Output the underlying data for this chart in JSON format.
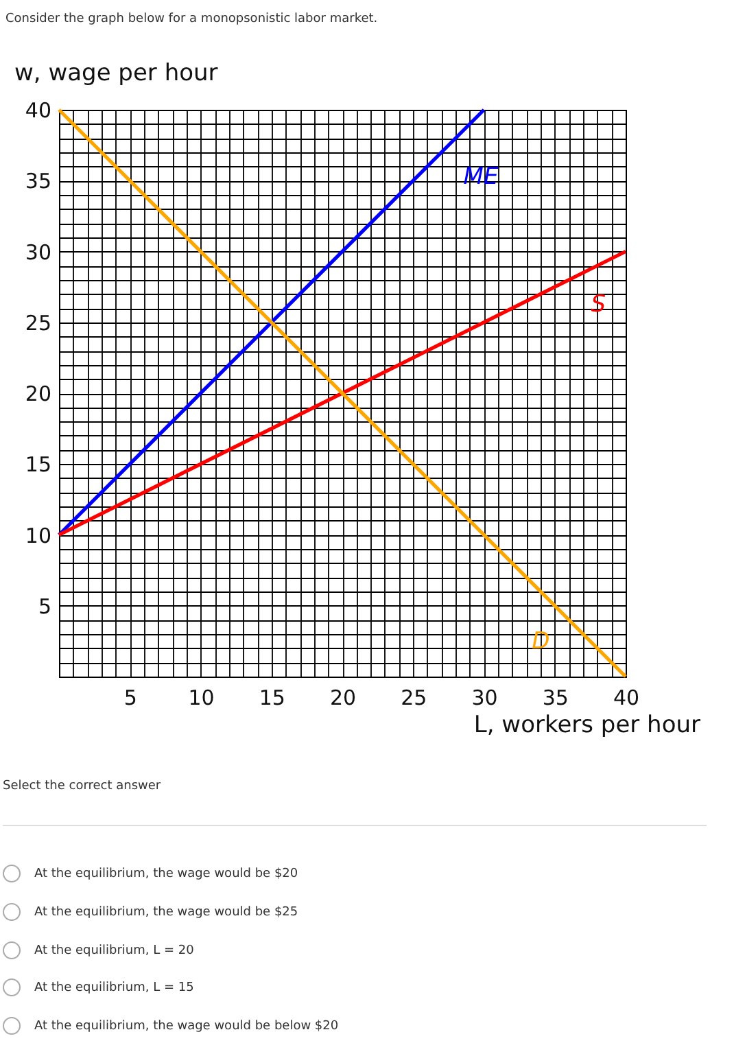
{
  "chart_data": {
    "type": "line",
    "title": "Consider the graph below for a monopsonistic labor market.",
    "xlabel": "L, workers per hour",
    "ylabel": "w, wage per hour",
    "series": [
      {
        "name": "ME",
        "color": "#0000ff",
        "x": [
          0,
          30
        ],
        "values": [
          10,
          40
        ]
      },
      {
        "name": "S",
        "color": "#ff0000",
        "x": [
          0,
          40
        ],
        "values": [
          10,
          30
        ]
      },
      {
        "name": "D",
        "color": "#ffa500",
        "x": [
          0,
          40
        ],
        "values": [
          40,
          0
        ]
      }
    ],
    "xlim": [
      0,
      40
    ],
    "ylim": [
      0,
      40
    ],
    "xticks": [
      5,
      10,
      15,
      20,
      25,
      30,
      35,
      40
    ],
    "yticks": [
      5,
      10,
      15,
      20,
      25,
      30,
      35,
      40
    ],
    "grid": true,
    "legend": false,
    "marker": "none",
    "line_style": "solid",
    "annotations": [
      "Select the correct answer",
      "At the equilibrium, the wage would be $20",
      "At the equilibrium, the wage would be $25",
      "At the equilibrium, L = 20",
      "At the equilibrium, L = 15",
      "At the equilibrium, the wage would be below $20"
    ]
  }
}
